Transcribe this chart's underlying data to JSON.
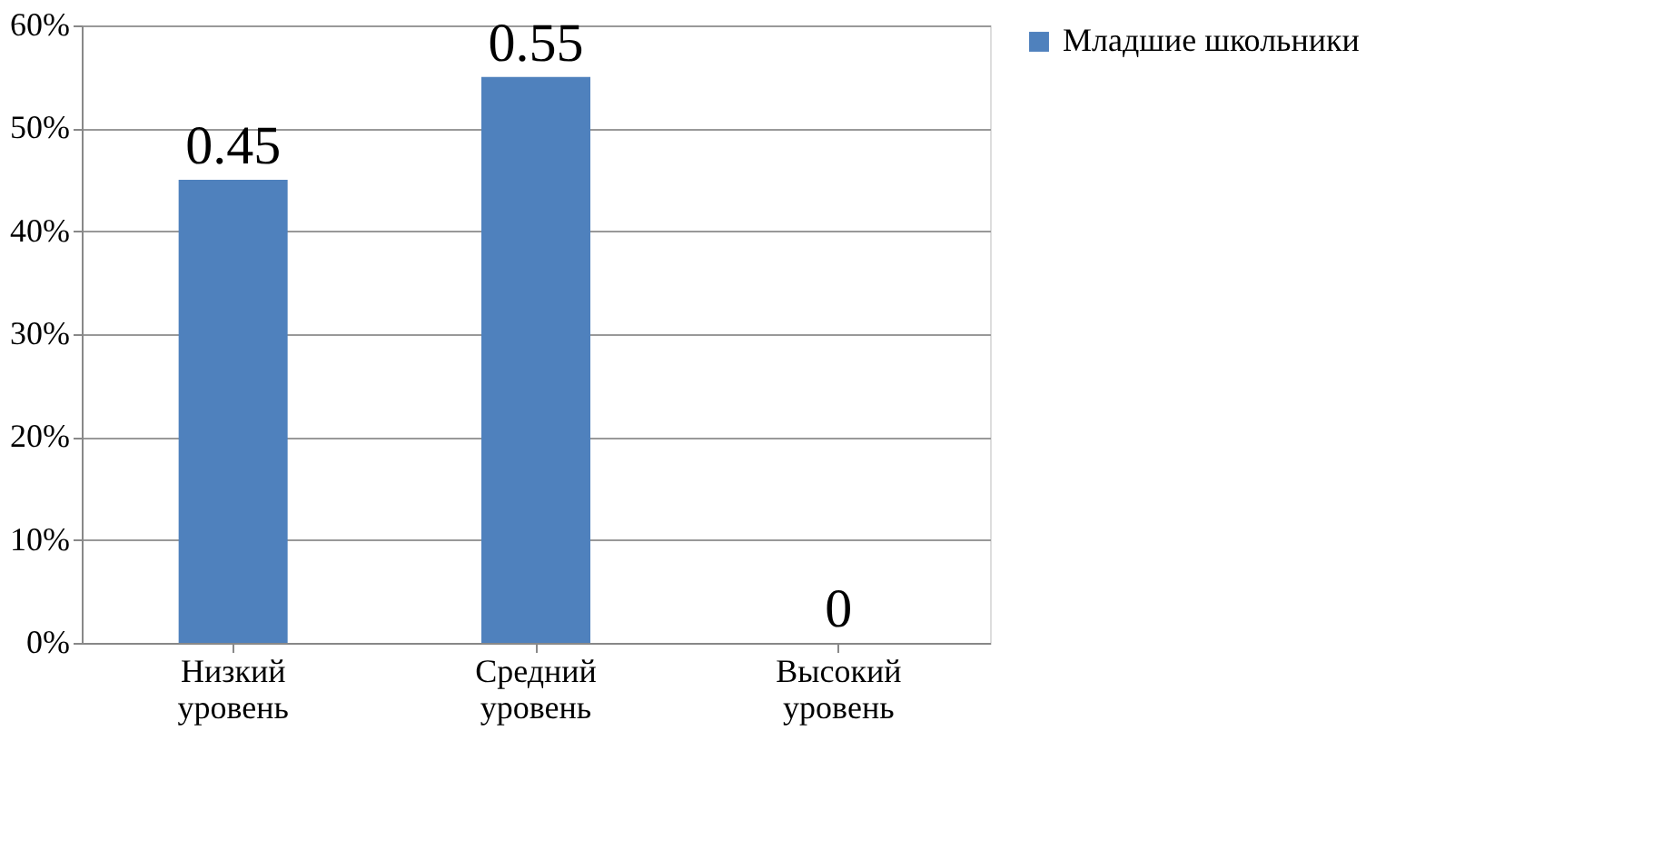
{
  "chart_data": {
    "type": "bar",
    "categories": [
      "Низкий уровень",
      "Средний уровень",
      "Высокий уровень"
    ],
    "series": [
      {
        "name": "Младшие школьники",
        "color": "#4f81bd",
        "values": [
          0.45,
          0.55,
          0
        ]
      }
    ],
    "ylim": [
      0,
      0.6
    ],
    "yticks": [
      {
        "value": 0,
        "label": "0%"
      },
      {
        "value": 0.1,
        "label": "10%"
      },
      {
        "value": 0.2,
        "label": "20%"
      },
      {
        "value": 0.3,
        "label": "30%"
      },
      {
        "value": 0.4,
        "label": "40%"
      },
      {
        "value": 0.5,
        "label": "50%"
      },
      {
        "value": 0.6,
        "label": "60%"
      }
    ],
    "grid": "y",
    "legend": "right",
    "data_labels": true
  }
}
